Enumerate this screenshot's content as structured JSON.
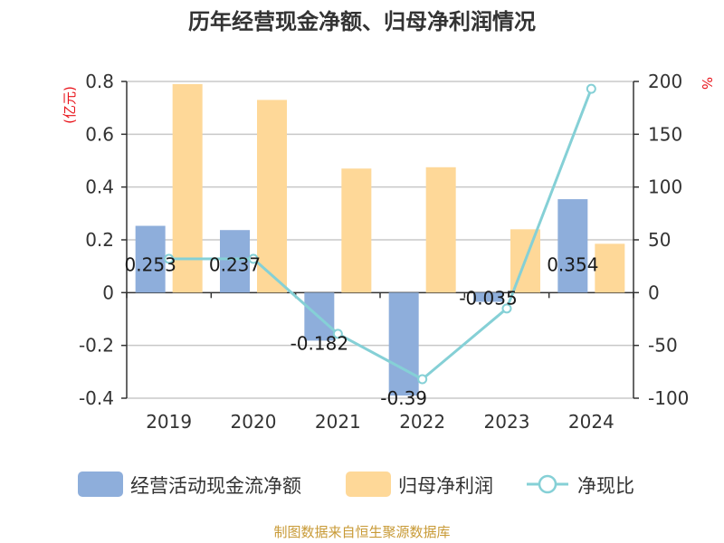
{
  "title": "历年经营现金净额、归母净利润情况",
  "source": "制图数据来自恒生聚源数据库",
  "left_axis_unit": "(亿元)",
  "right_axis_unit": "%",
  "colors": {
    "cash_flow": "#8eaedb",
    "net_profit": "#fed898",
    "ratio": "#85d0d6",
    "grid": "#c8c8c8",
    "axis": "#333333",
    "unit": "#e8141b",
    "source": "#c89a36"
  },
  "chart_data": {
    "type": "bar",
    "title": "历年经营现金净额、归母净利润情况",
    "categories": [
      "2019",
      "2020",
      "2021",
      "2022",
      "2023",
      "2024"
    ],
    "series": [
      {
        "name": "经营活动现金流净额",
        "type": "bar",
        "axis": "left",
        "values": [
          0.253,
          0.237,
          -0.182,
          -0.39,
          -0.035,
          0.354
        ],
        "labels": [
          "0.253",
          "0.237",
          "-0.182",
          "-0.39",
          "-0.035",
          "0.354"
        ]
      },
      {
        "name": "归母净利润",
        "type": "bar",
        "axis": "left",
        "values": [
          0.79,
          0.73,
          0.47,
          0.475,
          0.24,
          0.185
        ]
      },
      {
        "name": "净现比",
        "type": "line",
        "axis": "right",
        "values": [
          32,
          32,
          -39,
          -82,
          -15,
          193
        ]
      }
    ],
    "left_axis": {
      "unit": "(亿元)",
      "ylim": [
        -0.4,
        0.8
      ],
      "ticks": [
        "0.8",
        "0.6",
        "0.4",
        "0.2",
        "0",
        "-0.2",
        "-0.4"
      ]
    },
    "right_axis": {
      "unit": "%",
      "ylim": [
        -100,
        200
      ],
      "ticks": [
        "200",
        "150",
        "100",
        "50",
        "0",
        "-50",
        "-100"
      ]
    },
    "grid": true,
    "legend_position": "bottom"
  }
}
